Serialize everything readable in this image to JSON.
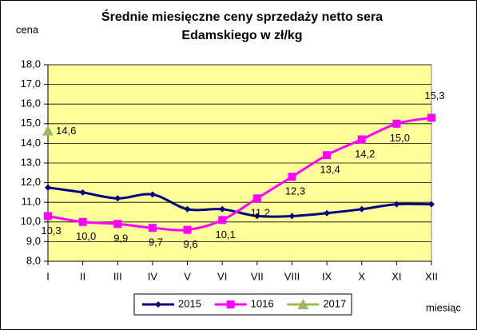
{
  "chart_data": {
    "type": "line",
    "title": "Średnie miesięczne ceny sprzedaży netto sera Edamskiego w zł/kg",
    "y_label": "cena",
    "x_label": "miesiąc",
    "categories": [
      "I",
      "II",
      "III",
      "IV",
      "V",
      "VI",
      "VII",
      "VIII",
      "IX",
      "X",
      "XI",
      "XII"
    ],
    "series": [
      {
        "name": "2015",
        "color": "#000080",
        "marker": "diamond",
        "values": [
          11.75,
          11.5,
          11.2,
          11.4,
          10.65,
          10.65,
          10.3,
          10.3,
          10.45,
          10.65,
          10.9,
          10.9
        ]
      },
      {
        "name": "1016",
        "color": "#ff00ff",
        "marker": "square",
        "values": [
          10.3,
          10.0,
          9.9,
          9.7,
          9.6,
          10.1,
          11.2,
          12.3,
          13.4,
          14.2,
          15.0,
          15.3
        ],
        "value_labels": [
          "10,3",
          "10,0",
          "9,9",
          "9,7",
          "9,6",
          "10,1",
          "11,2",
          "12,3",
          "13,4",
          "14,2",
          "15,0",
          "15,3"
        ]
      },
      {
        "name": "2017",
        "color": "#9bbb59",
        "marker": "triangle",
        "values": [
          14.6,
          null,
          null,
          null,
          null,
          null,
          null,
          null,
          null,
          null,
          null,
          null
        ],
        "value_labels": [
          "14,6",
          null,
          null,
          null,
          null,
          null,
          null,
          null,
          null,
          null,
          null,
          null
        ]
      }
    ],
    "ylim": [
      8,
      18
    ],
    "yticks": [
      {
        "value": 8,
        "label": "8,0"
      },
      {
        "value": 9,
        "label": "9,0"
      },
      {
        "value": 10,
        "label": "10,0"
      },
      {
        "value": 11,
        "label": "11,0"
      },
      {
        "value": 12,
        "label": "12,0"
      },
      {
        "value": 13,
        "label": "13,0"
      },
      {
        "value": 14,
        "label": "14,0"
      },
      {
        "value": 15,
        "label": "15,0"
      },
      {
        "value": 16,
        "label": "16,0"
      },
      {
        "value": 17,
        "label": "17,0"
      },
      {
        "value": 18,
        "label": "18,0"
      }
    ],
    "grid": true,
    "legend": "bottom",
    "plot_background": "#ffff99"
  }
}
